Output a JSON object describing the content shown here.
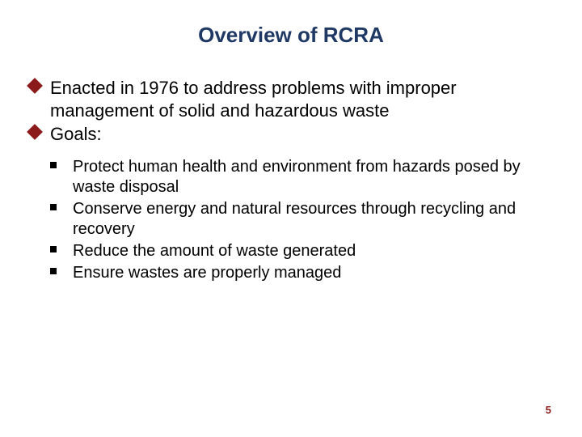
{
  "slide": {
    "title": "Overview of RCRA",
    "title_color": "#1f3864",
    "title_fontsize": 26,
    "bullets": [
      {
        "text": "Enacted in 1976 to address problems with improper management of solid and hazardous waste"
      },
      {
        "text": "Goals:"
      }
    ],
    "bullet_marker_color": "#8b1a1a",
    "bullet_text_color": "#000000",
    "bullet_fontsize": 22,
    "sub_bullets": [
      {
        "text": "Protect human health and environment from hazards posed by waste disposal"
      },
      {
        "text": "Conserve energy and natural resources through recycling and recovery"
      },
      {
        "text": "Reduce the amount of waste generated"
      },
      {
        "text": "Ensure wastes are properly managed"
      }
    ],
    "sub_marker_color": "#000000",
    "sub_text_color": "#000000",
    "sub_fontsize": 20,
    "page_number": "5",
    "page_number_color": "#8b1a1a",
    "page_number_fontsize": 13,
    "background_color": "#ffffff"
  }
}
